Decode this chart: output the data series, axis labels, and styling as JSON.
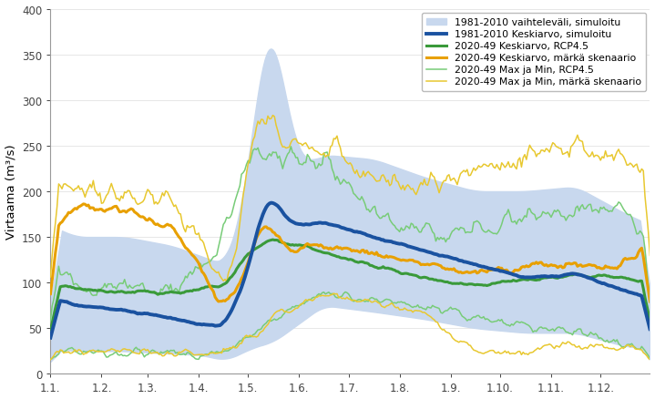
{
  "ylabel": "Virtaama (m³/s)",
  "ylim": [
    0,
    400
  ],
  "yticks": [
    0,
    50,
    100,
    150,
    200,
    250,
    300,
    350,
    400
  ],
  "xtick_labels": [
    "1.1.",
    "1.2.",
    "1.3.",
    "1.4.",
    "1.5.",
    "1.6.",
    "1.7.",
    "1.8.",
    "1.9.",
    "1.10.",
    "1.11.",
    "1.12."
  ],
  "xtick_positions": [
    1,
    32,
    60,
    91,
    121,
    152,
    182,
    213,
    244,
    274,
    305,
    335
  ],
  "legend_labels": [
    "1981-2010 vaihteleväli, simuloitu",
    "1981-2010 Keskiarvo, simuloitu",
    "2020-49 Keskiarvo, RCP4.5",
    "2020-49 Keskiarvo, märkä skenaario",
    "2020-49 Max ja Min, RCP4.5",
    "2020-49 Max ja Min, märkä skenaario"
  ],
  "color_band": "#c8d8ee",
  "color_mean_hist": "#1a52a0",
  "color_mean_rcp45": "#3a9a3a",
  "color_mean_wet": "#e8a000",
  "color_minmax_rcp45": "#78cc78",
  "color_minmax_wet": "#e8c830",
  "lw_hist": 2.8,
  "lw_rcp": 2.2,
  "lw_minmax": 1.1
}
